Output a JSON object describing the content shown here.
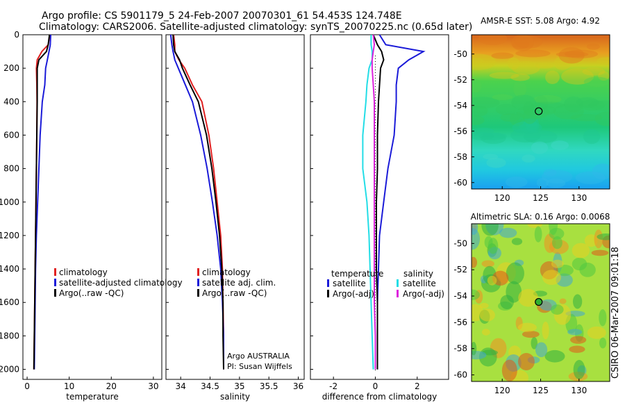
{
  "header": {
    "line1": "Argo profile: CS 5901179_5 24-Feb-2007 20070301_61 54.453S 124.748E",
    "line2": "Climatology: CARS2006. Satellite-adjusted climatology: synTS_20070225.nc (0.65d later)"
  },
  "side_label": "CSIRO 06-Mar-2007 09:01:18",
  "colors": {
    "climatology": "#e02020",
    "satellite": "#1a1ad8",
    "argo": "#000000",
    "satellite_diff_s": "#22dde6",
    "argo_diff_s": "#dd22dd"
  },
  "chart_data": [
    {
      "type": "line",
      "id": "temperature",
      "xlabel": "temperature",
      "xlim": [
        -1,
        32
      ],
      "ylim": [
        2060,
        0
      ],
      "y_reversed": true,
      "xticks": [
        0,
        10,
        20,
        30
      ],
      "yticks": [
        0,
        200,
        400,
        600,
        800,
        1000,
        1200,
        1400,
        1600,
        1800,
        2000
      ],
      "legend": {
        "placement": "bottom-center",
        "entries": [
          "climatology",
          "satellite-adjusted climatology",
          "Argo(..raw -QC)"
        ]
      },
      "series": [
        {
          "name": "climatology",
          "color": "#e02020",
          "x": [
            5.4,
            5.0,
            3.5,
            2.4,
            2.2,
            2.3,
            2.35,
            2.3,
            2.2,
            2.1,
            2.0,
            1.9,
            1.8,
            1.7,
            1.6
          ],
          "y": [
            0,
            60,
            100,
            150,
            200,
            300,
            400,
            600,
            800,
            1000,
            1200,
            1400,
            1600,
            1800,
            2000
          ]
        },
        {
          "name": "satellite-adjusted climatology",
          "color": "#1a1ad8",
          "x": [
            5.6,
            5.5,
            5.2,
            4.8,
            4.4,
            4.2,
            3.6,
            3.1,
            2.8,
            2.5,
            2.2,
            2.0,
            1.9,
            1.8,
            1.7
          ],
          "y": [
            0,
            60,
            100,
            150,
            200,
            300,
            400,
            600,
            800,
            1000,
            1200,
            1400,
            1600,
            1800,
            2000
          ]
        },
        {
          "name": "Argo(..raw -QC)",
          "color": "#000000",
          "x": [
            5.3,
            5.0,
            4.6,
            2.8,
            2.4,
            2.4,
            2.4,
            2.3,
            2.2,
            2.1,
            2.0,
            1.9,
            1.8,
            1.7,
            1.6
          ],
          "y": [
            0,
            60,
            100,
            150,
            200,
            300,
            400,
            600,
            800,
            1000,
            1200,
            1400,
            1600,
            1800,
            2000
          ]
        }
      ]
    },
    {
      "type": "line",
      "id": "salinity",
      "xlabel": "salinity",
      "xlim": [
        33.75,
        36.1
      ],
      "ylim": [
        2060,
        0
      ],
      "y_reversed": true,
      "xticks": [
        34,
        34.5,
        35,
        35.5,
        36
      ],
      "xtick_labels": [
        "34",
        "34.5",
        "35",
        "35.5",
        "36"
      ],
      "legend": {
        "placement": "bottom-center",
        "entries": [
          "climatology",
          "satellite adj. clim.",
          "Argo(..raw -QC)"
        ]
      },
      "annotation": [
        "Argo AUSTRALIA",
        "PI: Susan Wijffels"
      ],
      "series": [
        {
          "name": "climatology",
          "color": "#e02020",
          "x": [
            33.88,
            33.9,
            33.9,
            33.97,
            34.07,
            34.2,
            34.36,
            34.48,
            34.56,
            34.62,
            34.68,
            34.71,
            34.72,
            34.73,
            34.73
          ],
          "y": [
            0,
            60,
            100,
            150,
            200,
            300,
            400,
            600,
            800,
            1000,
            1200,
            1400,
            1600,
            1800,
            2000
          ]
        },
        {
          "name": "satellite adj. clim.",
          "color": "#1a1ad8",
          "x": [
            33.83,
            33.85,
            33.87,
            33.9,
            33.96,
            34.08,
            34.2,
            34.34,
            34.45,
            34.54,
            34.62,
            34.68,
            34.71,
            34.73,
            34.73
          ],
          "y": [
            0,
            60,
            100,
            150,
            200,
            300,
            400,
            600,
            800,
            1000,
            1200,
            1400,
            1600,
            1800,
            2000
          ]
        },
        {
          "name": "Argo(..raw -QC)",
          "color": "#000000",
          "x": [
            33.87,
            33.88,
            33.9,
            33.98,
            34.03,
            34.16,
            34.3,
            34.44,
            34.53,
            34.6,
            34.66,
            34.7,
            34.72,
            34.72,
            34.73
          ],
          "y": [
            0,
            60,
            100,
            150,
            200,
            300,
            400,
            600,
            800,
            1000,
            1200,
            1400,
            1600,
            1800,
            2000
          ]
        }
      ]
    },
    {
      "type": "line",
      "id": "difference",
      "xlabel": "difference from climatology",
      "xlim": [
        -3.1,
        3.5
      ],
      "ylim": [
        2060,
        0
      ],
      "y_reversed": true,
      "xticks": [
        -2,
        0,
        2
      ],
      "legend": {
        "placement": "bottom-center",
        "headers": [
          "temperature",
          "salinity"
        ],
        "left_entries": [
          "satellite",
          "Argo(-adj)"
        ],
        "right_entries": [
          "satellite",
          "Argo(-adj)"
        ]
      },
      "series": [
        {
          "name": "temperature satellite",
          "color": "#1a1ad8",
          "x": [
            0.2,
            0.5,
            2.3,
            1.6,
            1.1,
            1.0,
            1.0,
            0.9,
            0.6,
            0.4,
            0.2,
            0.15,
            0.1,
            0.1,
            0.1
          ],
          "y": [
            0,
            60,
            100,
            150,
            200,
            300,
            400,
            600,
            800,
            1000,
            1200,
            1400,
            1600,
            1800,
            2000
          ]
        },
        {
          "name": "temperature Argo(-adj)",
          "color": "#000000",
          "x": [
            -0.1,
            0.1,
            0.3,
            0.4,
            0.25,
            0.2,
            0.15,
            0.1,
            0.1,
            0.05,
            0.05,
            0.05,
            0.1,
            0.1,
            0.1
          ],
          "y": [
            0,
            60,
            100,
            150,
            200,
            300,
            400,
            600,
            800,
            1000,
            1200,
            1400,
            1600,
            1800,
            2000
          ]
        },
        {
          "name": "salinity satellite",
          "color": "#22dde6",
          "x": [
            -0.2,
            -0.2,
            -0.15,
            -0.15,
            -0.3,
            -0.4,
            -0.45,
            -0.6,
            -0.6,
            -0.4,
            -0.3,
            -0.25,
            -0.2,
            -0.15,
            -0.1
          ],
          "y": [
            0,
            60,
            100,
            150,
            200,
            300,
            400,
            600,
            800,
            1000,
            1200,
            1400,
            1600,
            1800,
            2000
          ]
        },
        {
          "name": "salinity Argo(-adj)",
          "color": "#dd22dd",
          "x": [
            -0.1,
            -0.05,
            -0.1,
            -0.15,
            -0.15,
            -0.1,
            -0.05,
            -0.05,
            -0.05,
            -0.05,
            -0.05,
            -0.05,
            -0.05,
            0.0,
            0.0
          ],
          "y": [
            0,
            60,
            100,
            150,
            200,
            300,
            400,
            600,
            800,
            1000,
            1200,
            1400,
            1600,
            1800,
            2000
          ]
        }
      ]
    },
    {
      "type": "heatmap",
      "id": "sst-map",
      "title": "AMSR-E SST: 5.08 Argo: 4.92",
      "xlim": [
        116,
        134
      ],
      "ylim": [
        -60.5,
        -48.5
      ],
      "xticks": [
        120,
        125,
        130
      ],
      "yticks": [
        -50,
        -52,
        -54,
        -56,
        -58,
        -60
      ],
      "marker": {
        "lon": 124.75,
        "lat": -54.45
      }
    },
    {
      "type": "heatmap",
      "id": "sla-map",
      "title": "Altimetric SLA: 0.16 Argo: 0.0068",
      "xlim": [
        116,
        134
      ],
      "ylim": [
        -60.5,
        -48.5
      ],
      "xticks": [
        120,
        125,
        130
      ],
      "yticks": [
        -50,
        -52,
        -54,
        -56,
        -58,
        -60
      ],
      "marker": {
        "lon": 124.75,
        "lat": -54.45
      }
    }
  ]
}
